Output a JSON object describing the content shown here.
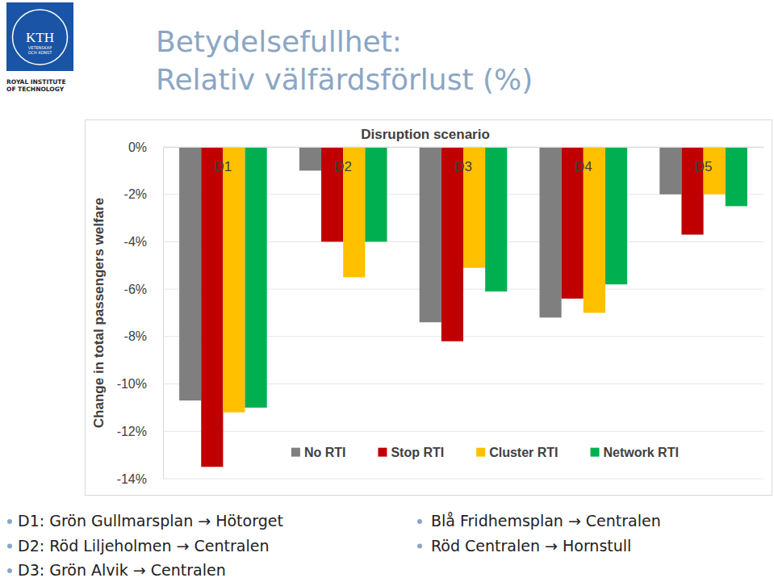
{
  "slide": {
    "title": [
      "Betydelsefullhet:",
      "Relativ välfärdsförlust (%)"
    ],
    "logo": {
      "text": "KTH",
      "motto": [
        "VETENSKAP",
        "OCH KONST"
      ],
      "name": [
        "ROYAL INSTITUTE",
        "OF TECHNOLOGY"
      ]
    },
    "bullets": {
      "left": [
        "D1: Grön Gullmarsplan → Hötorget",
        "D2: Röd Liljeholmen → Centralen",
        "D3: Grön Alvik → Centralen"
      ],
      "right": [
        "Blå Fridhemsplan → Centralen",
        "Röd Centralen → Hornstull"
      ]
    }
  },
  "chart_data": {
    "type": "bar",
    "title": "Disruption scenario",
    "y_label": "Change in total passengers welfare",
    "categories": [
      "D1",
      "D2",
      "D3",
      "D4",
      "D5"
    ],
    "series": [
      {
        "name": "No RTI",
        "color": "#7f7f7f",
        "values": [
          -10.7,
          -1.0,
          -7.4,
          -7.2,
          -2.0
        ]
      },
      {
        "name": "Stop RTI",
        "color": "#c00000",
        "values": [
          -13.5,
          -4.0,
          -8.2,
          -6.4,
          -3.7
        ]
      },
      {
        "name": "Cluster RTI",
        "color": "#ffc000",
        "values": [
          -11.2,
          -5.5,
          -5.1,
          -7.0,
          -2.0
        ]
      },
      {
        "name": "Network RTI",
        "color": "#00b050",
        "values": [
          -11.0,
          -4.0,
          -6.1,
          -5.8,
          -2.5
        ]
      }
    ],
    "ylim": [
      -14,
      0
    ],
    "yticks": [
      {
        "value": -14,
        "label": "-14%"
      },
      {
        "value": -12,
        "label": "-12%"
      },
      {
        "value": -10,
        "label": "-10%"
      },
      {
        "value": -8,
        "label": "-8%"
      },
      {
        "value": -6,
        "label": "-6%"
      },
      {
        "value": -4,
        "label": "-4%"
      },
      {
        "value": -2,
        "label": "-2%"
      },
      {
        "value": 0,
        "label": "0%"
      }
    ],
    "grid": true,
    "legend": "bottom"
  }
}
